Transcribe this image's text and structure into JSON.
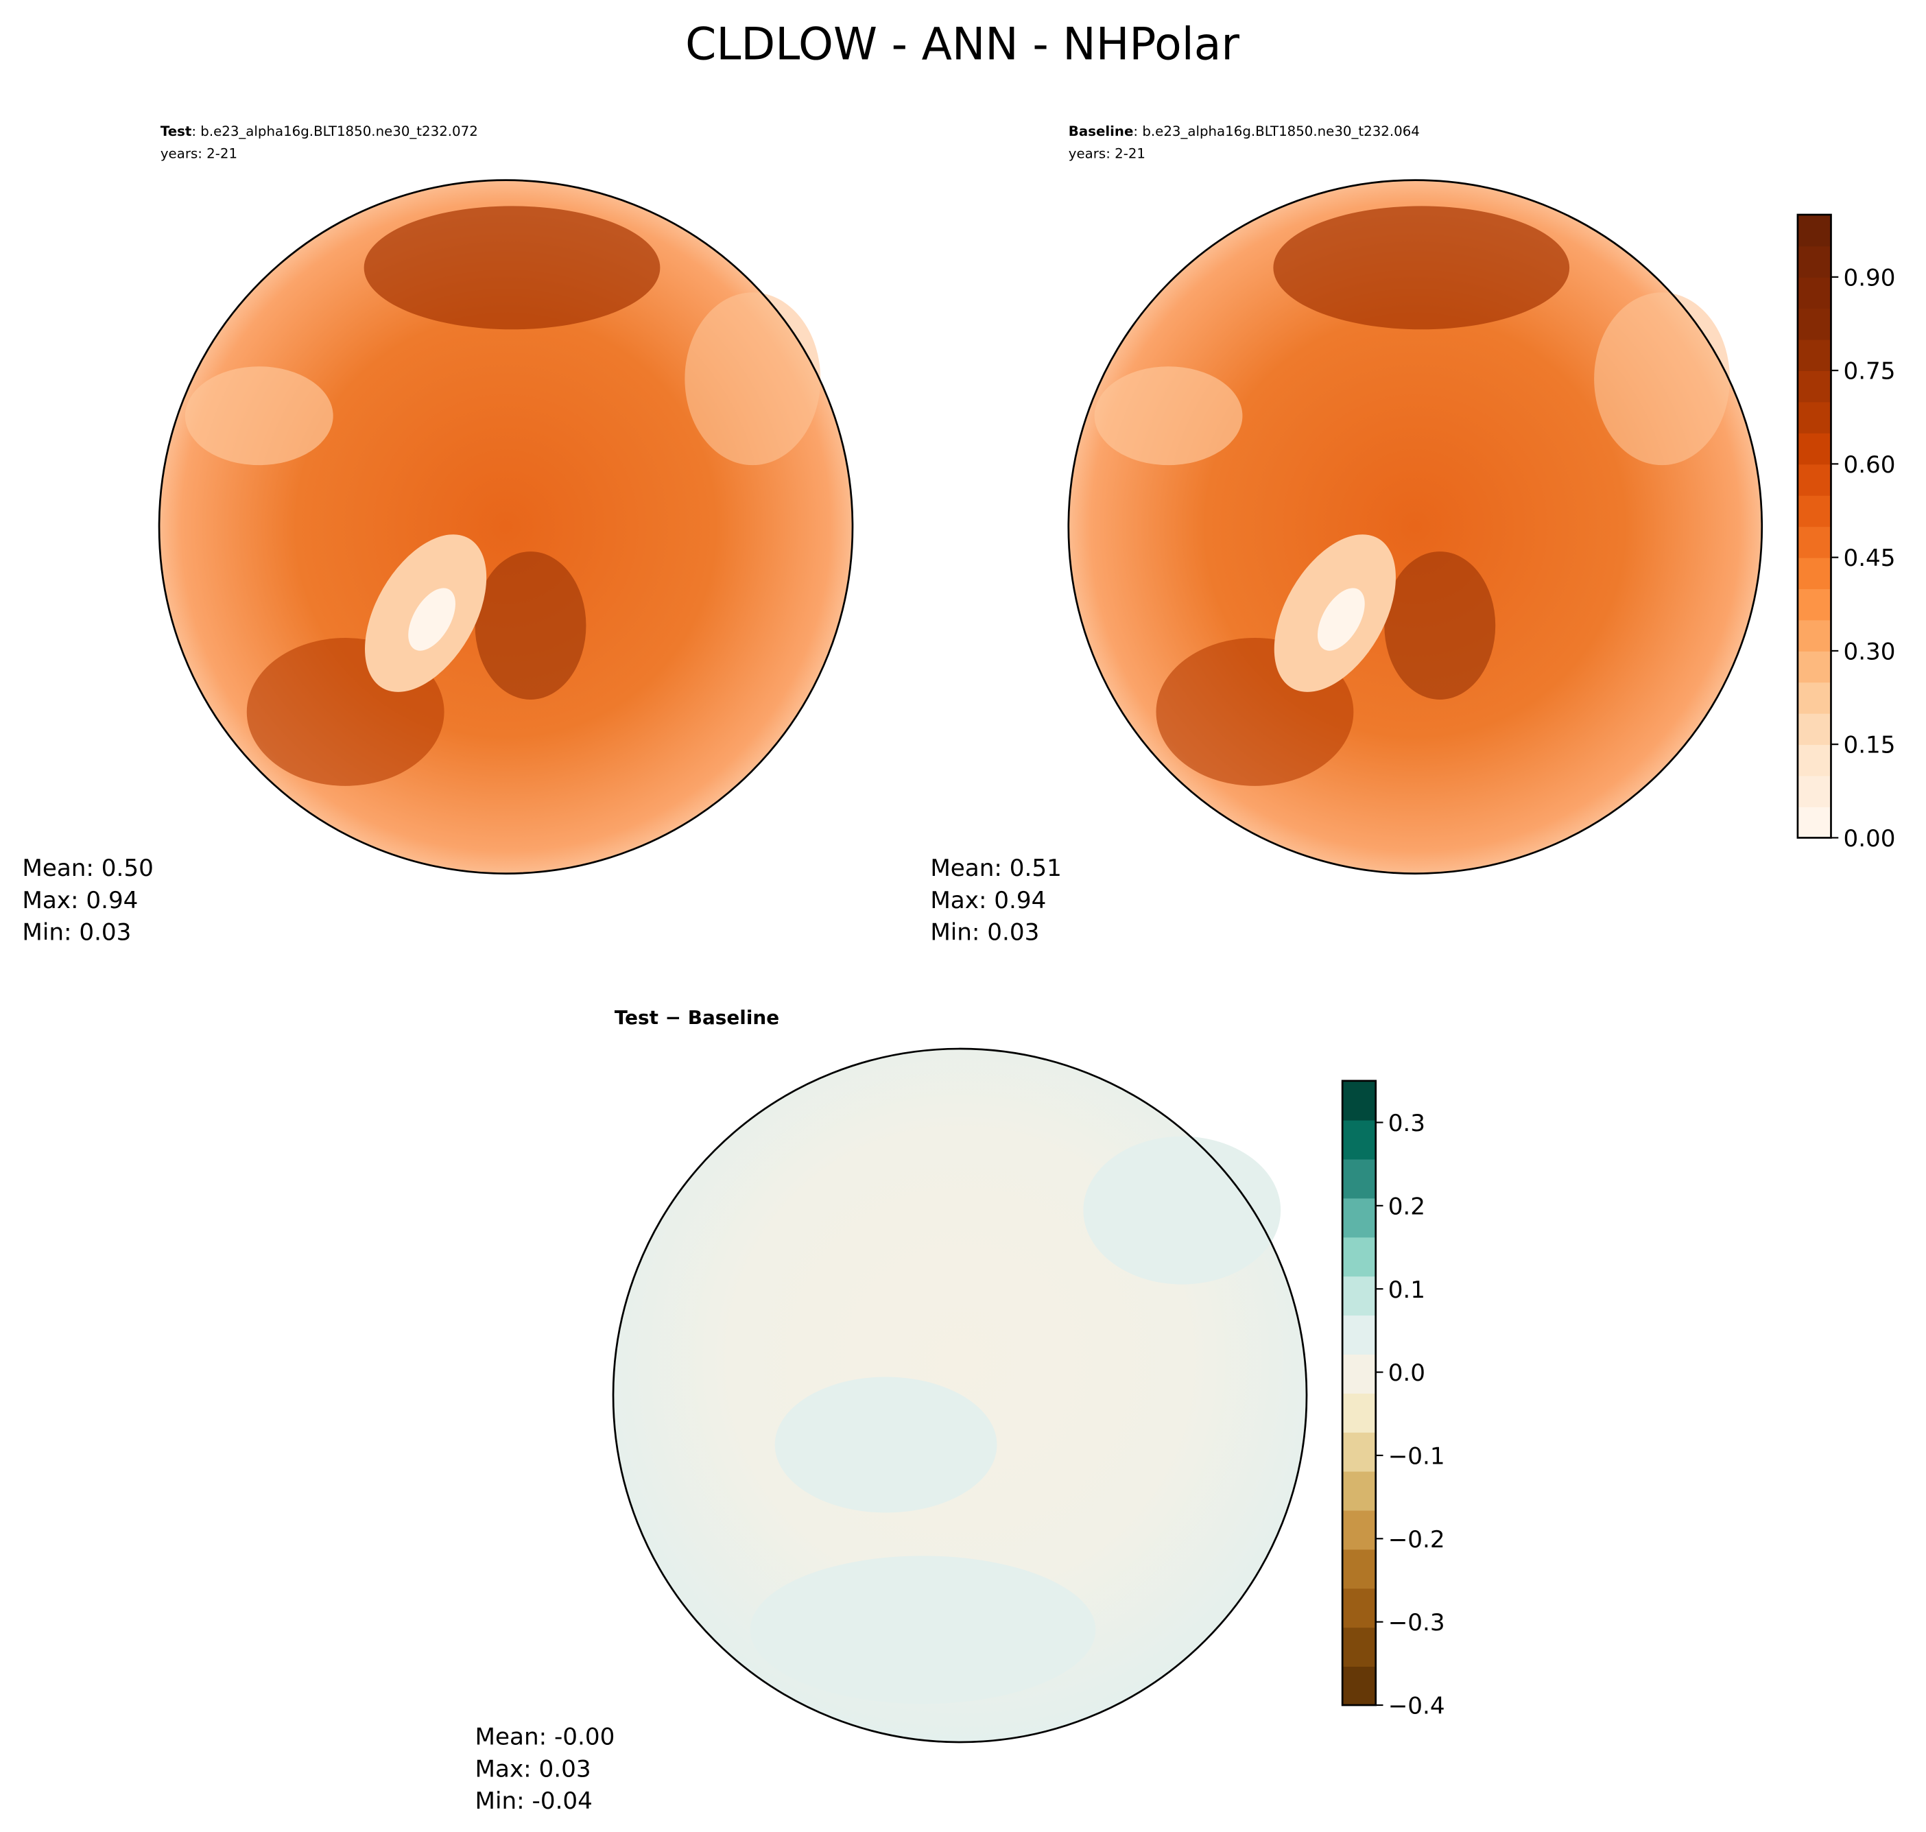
{
  "title": "CLDLOW - ANN - NHPolar",
  "chart_data": [
    {
      "type": "map",
      "panel_label": "Test",
      "case": ": b.e23_alpha16g.BLT1850.ne30_t232.072",
      "years": "years: 2-21",
      "stats": [
        "Mean:  0.50",
        "Max:  0.94",
        "Min:  0.03"
      ]
    },
    {
      "type": "map",
      "panel_label": "Baseline",
      "case": ": b.e23_alpha16g.BLT1850.ne30_t232.064",
      "years": "years: 2-21",
      "stats": [
        "Mean:  0.51",
        "Max:  0.94",
        "Min:  0.03"
      ],
      "colorbar": {
        "ylim": [
          0,
          1
        ],
        "yticks": [
          {
            "value": 0,
            "label": "0.00"
          },
          {
            "value": 0.15,
            "label": "0.15"
          },
          {
            "value": 0.3,
            "label": "0.30"
          },
          {
            "value": 0.45,
            "label": "0.45"
          },
          {
            "value": 0.6,
            "label": "0.60"
          },
          {
            "value": 0.75,
            "label": "0.75"
          },
          {
            "value": 0.9,
            "label": "0.90"
          }
        ],
        "colors": [
          "#fff5eb",
          "#feeddc",
          "#fee6cd",
          "#fdd9b5",
          "#fdcb9b",
          "#fdb97e",
          "#fda762",
          "#fd9446",
          "#f88230",
          "#f06f20",
          "#e75f13",
          "#db500a",
          "#cb4302",
          "#b63c02",
          "#a63603",
          "#953003",
          "#852a04",
          "#7f2704",
          "#762505",
          "#6b2205"
        ]
      }
    },
    {
      "type": "map",
      "panel_label": "Test − Baseline",
      "stats": [
        "Mean: -0.00",
        "Max:  0.03",
        "Min: -0.04"
      ],
      "colorbar": {
        "ylim": [
          -0.4,
          0.35
        ],
        "yticks": [
          {
            "value": -0.4,
            "label": "−0.4"
          },
          {
            "value": -0.3,
            "label": "−0.3"
          },
          {
            "value": -0.2,
            "label": "−0.2"
          },
          {
            "value": -0.1,
            "label": "−0.1"
          },
          {
            "value": 0,
            "label": "0.0"
          },
          0.1,
          0.2,
          0.3
        ],
        "colors": [
          "#653807",
          "#7f4a0c",
          "#9b5e15",
          "#b17626",
          "#c99646",
          "#d7b56c",
          "#e8d29a",
          "#f4eac8",
          "#f5f1e5",
          "#e3f0ee",
          "#c3e7e0",
          "#8fd4c6",
          "#5eb4a8",
          "#2d8c80",
          "#06705f",
          "#01493c"
        ]
      }
    }
  ]
}
